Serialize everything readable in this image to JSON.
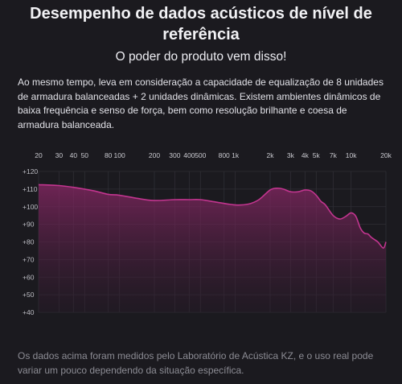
{
  "header": {
    "title": "Desempenho de dados acústicos de nível de referência",
    "subtitle": "O poder do produto vem disso!"
  },
  "description": "Ao mesmo tempo, leva em consideração a capacidade de equalização de 8 unidades de armadura balanceadas + 2 unidades dinâmicas. Existem ambientes dinâmicos de baixa frequência e senso de força, bem como resolução brilhante e coesa de armadura balanceada.",
  "footnote": "Os dados acima foram medidos pelo Laboratório de Acústica KZ, e o uso real pode variar um pouco dependendo da situação específica.",
  "colors": {
    "background": "#1b1a1f",
    "curve": "#c2358f",
    "fill": "#6b1f4f"
  },
  "chart_data": {
    "type": "area",
    "x_scale": "log",
    "xlim": [
      20,
      20000
    ],
    "x_ticks": [
      {
        "value": 20,
        "label": "20"
      },
      {
        "value": 30,
        "label": "30"
      },
      {
        "value": 40,
        "label": "40"
      },
      {
        "value": 50,
        "label": "50"
      },
      {
        "value": 80,
        "label": "80"
      },
      {
        "value": 100,
        "label": "100"
      },
      {
        "value": 200,
        "label": "200"
      },
      {
        "value": 300,
        "label": "300"
      },
      {
        "value": 400,
        "label": "400"
      },
      {
        "value": 500,
        "label": "500"
      },
      {
        "value": 800,
        "label": "800"
      },
      {
        "value": 1000,
        "label": "1k"
      },
      {
        "value": 2000,
        "label": "2k"
      },
      {
        "value": 3000,
        "label": "3k"
      },
      {
        "value": 4000,
        "label": "4k"
      },
      {
        "value": 5000,
        "label": "5k"
      },
      {
        "value": 7000,
        "label": "7k"
      },
      {
        "value": 10000,
        "label": "10k"
      },
      {
        "value": 20000,
        "label": "20k"
      }
    ],
    "y_ticks": [
      {
        "value": 120,
        "label": "+120"
      },
      {
        "value": 110,
        "label": "+110"
      },
      {
        "value": 100,
        "label": "+100"
      },
      {
        "value": 90,
        "label": "+90"
      },
      {
        "value": 80,
        "label": "+80"
      },
      {
        "value": 70,
        "label": "+70"
      },
      {
        "value": 60,
        "label": "+60"
      },
      {
        "value": 50,
        "label": "+50"
      },
      {
        "value": 40,
        "label": "+40"
      }
    ],
    "ylim": [
      40,
      120
    ],
    "grid": true,
    "x": [
      20,
      30,
      40,
      60,
      80,
      100,
      150,
      200,
      300,
      400,
      500,
      700,
      1000,
      1300,
      1600,
      2000,
      2300,
      2600,
      3000,
      3500,
      4000,
      4500,
      5000,
      5500,
      6000,
      7000,
      8000,
      9000,
      10000,
      11000,
      12000,
      13000,
      14000,
      15000,
      17000,
      19000,
      20000
    ],
    "y": [
      112.5,
      112,
      111,
      109,
      107,
      106.5,
      104.5,
      103.5,
      104,
      104,
      104,
      102.5,
      101,
      101.5,
      104,
      109.5,
      110.5,
      110,
      108.5,
      108.5,
      109.5,
      109,
      106.5,
      103,
      101,
      95,
      93,
      94.5,
      96.5,
      94.5,
      88,
      85,
      84.5,
      82.5,
      80,
      76.5,
      80
    ]
  }
}
